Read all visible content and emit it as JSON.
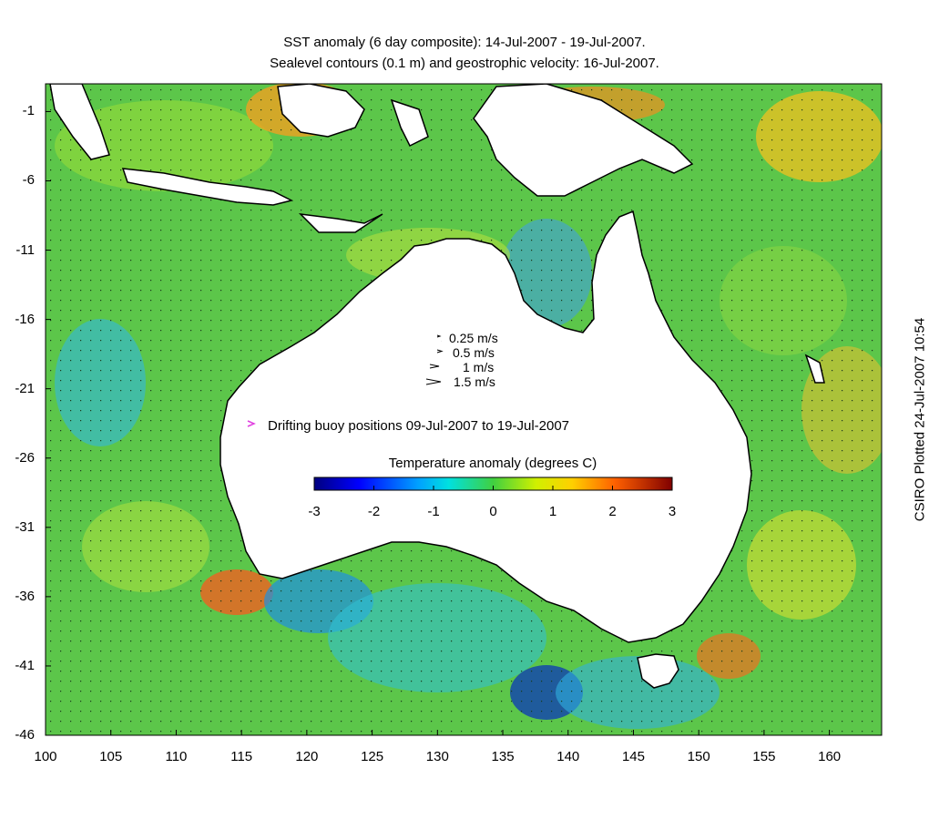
{
  "title_line1": "SST anomaly (6 day composite): 14-Jul-2007 - 19-Jul-2007.",
  "title_line2": "Sealevel contours (0.1 m) and geostrophic velocity: 16-Jul-2007.",
  "credit": "CSIRO Plotted 24-Jul-2007 10:54",
  "axes": {
    "x_ticks": [
      "100",
      "105",
      "110",
      "115",
      "120",
      "125",
      "130",
      "135",
      "140",
      "145",
      "150",
      "155",
      "160"
    ],
    "y_ticks": [
      "-1",
      "-6",
      "-11",
      "-16",
      "-21",
      "-26",
      "-31",
      "-36",
      "-41",
      "-46"
    ]
  },
  "velocity_legend": [
    {
      "label": "0.25 m/s",
      "speed": 0.25
    },
    {
      "label": "0.5 m/s",
      "speed": 0.5
    },
    {
      "label": "1 m/s",
      "speed": 1
    },
    {
      "label": "1.5 m/s",
      "speed": 1.5
    }
  ],
  "buoy_legend": "Drifting buoy positions 09-Jul-2007 to 19-Jul-2007",
  "colorbar": {
    "title": "Temperature anomaly (degrees C)",
    "ticks": [
      "-3",
      "-2",
      "-1",
      "0",
      "1",
      "2",
      "3"
    ],
    "range": [
      -3,
      3
    ]
  },
  "colors": {
    "land": "#ffffff",
    "ocean_base": "#5fc84a",
    "buoy": "#e040e0",
    "contour": "#d8f0f0"
  }
}
